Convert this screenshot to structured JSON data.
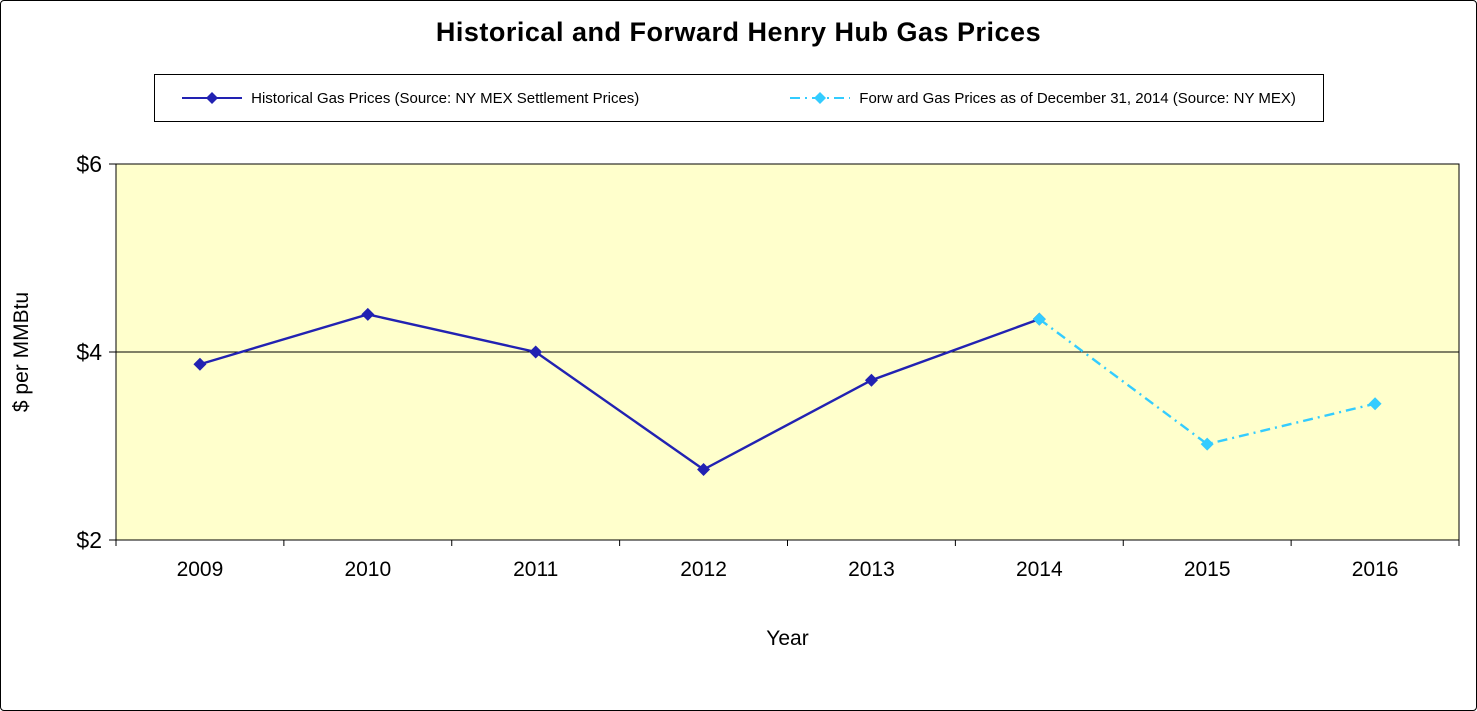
{
  "chart_data": {
    "type": "line",
    "title": "Historical and Forward Henry Hub Gas Prices",
    "xlabel": "Year",
    "ylabel": "$ per MMBtu",
    "x": [
      2009,
      2010,
      2011,
      2012,
      2013,
      2014,
      2015,
      2016
    ],
    "series": [
      {
        "name": "Historical Gas Prices (Source: NY MEX Settlement Prices)",
        "values": [
          3.87,
          4.4,
          4.0,
          2.75,
          3.7,
          4.35,
          null,
          null
        ],
        "color": "#2222B2",
        "line_style": "solid",
        "marker": "diamond"
      },
      {
        "name": "Forw ard Gas Prices as of December 31, 2014 (Source: NY MEX)",
        "values": [
          null,
          null,
          null,
          null,
          null,
          4.35,
          3.02,
          3.45
        ],
        "color": "#33CCFF",
        "line_style": "dash-dot",
        "marker": "diamond"
      }
    ],
    "ylim": [
      2,
      6
    ],
    "yticks": [
      2,
      4,
      6
    ],
    "ytick_labels": [
      "$2",
      "$4",
      "$6"
    ],
    "gridlines_y": [
      4
    ],
    "plot_bg": "#FFFFCC",
    "axis_color": "#000000",
    "legend_position": "top",
    "grid": "horizontal-only"
  }
}
